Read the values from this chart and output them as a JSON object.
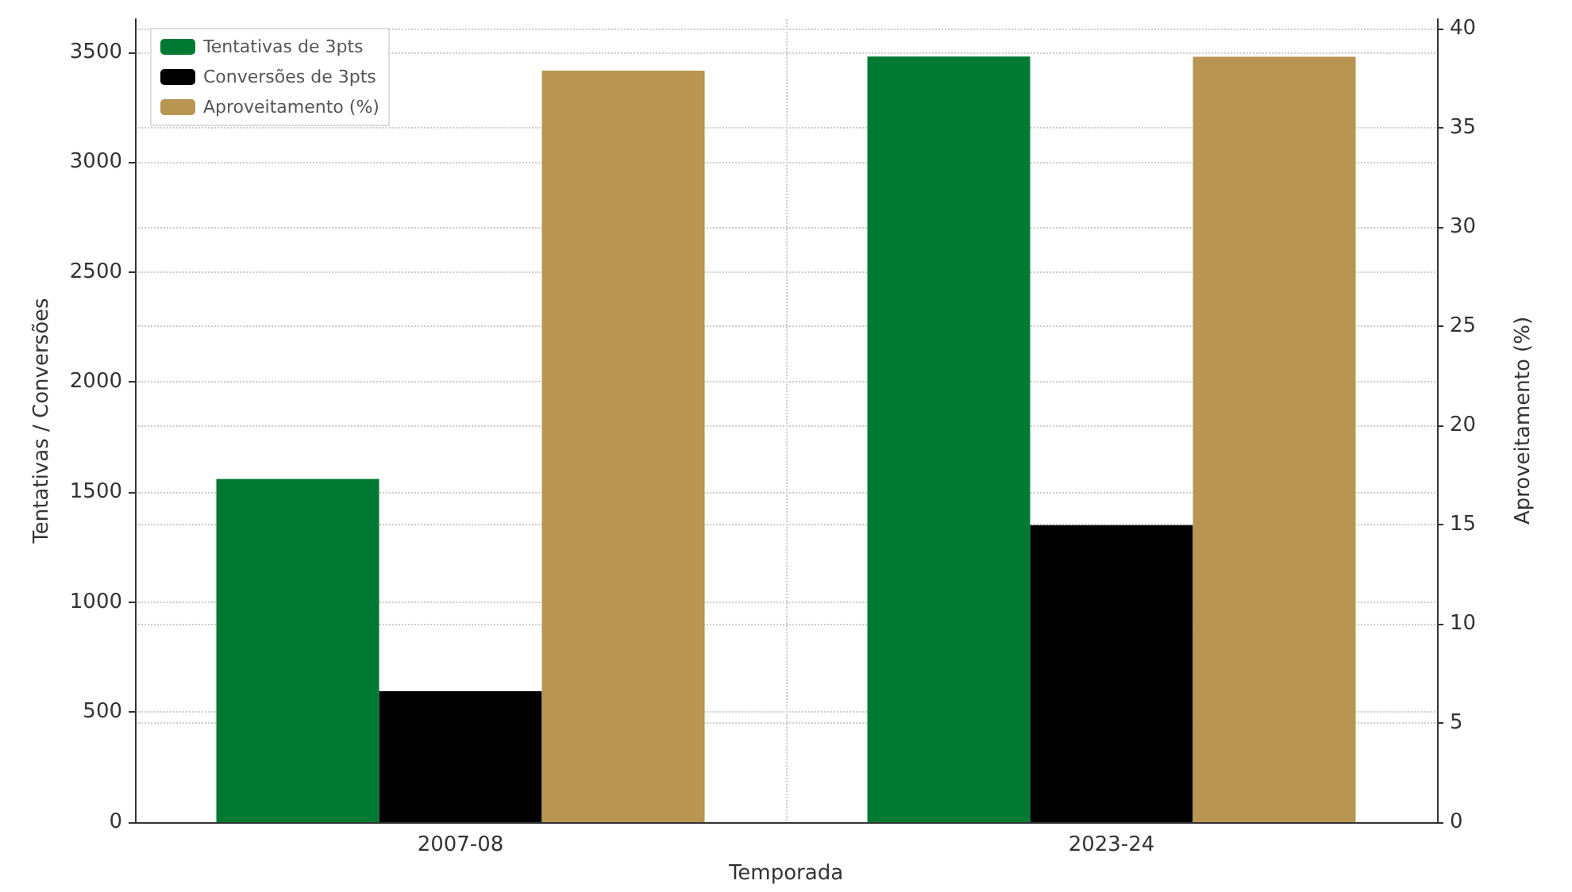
{
  "chart_data": {
    "type": "bar",
    "xlabel": "Temporada",
    "ylabel": "Tentativas / Conversões",
    "y2label": "Aproveitamento (%)",
    "categories": [
      "2007-08",
      "2023-24"
    ],
    "series": [
      {
        "name": "Tentativas de 3pts",
        "color": "#007a33",
        "values": [
          1560,
          3480
        ]
      },
      {
        "name": "Conversões de 3pts",
        "color": "#000000",
        "values": [
          595,
          1350
        ]
      },
      {
        "name": "Aproveitamento (%)",
        "color": "#b89651",
        "values": [
          37.9,
          38.6
        ],
        "axis": "y2"
      }
    ],
    "ylim": [
      0,
      3650
    ],
    "yticks": [
      0,
      500,
      1000,
      1500,
      2000,
      2500,
      3000,
      3500
    ],
    "y2lim": [
      0,
      40.5
    ],
    "y2ticks": [
      0,
      5,
      10,
      15,
      20,
      25,
      30,
      35,
      40
    ],
    "grid": true,
    "legend": "top left"
  }
}
